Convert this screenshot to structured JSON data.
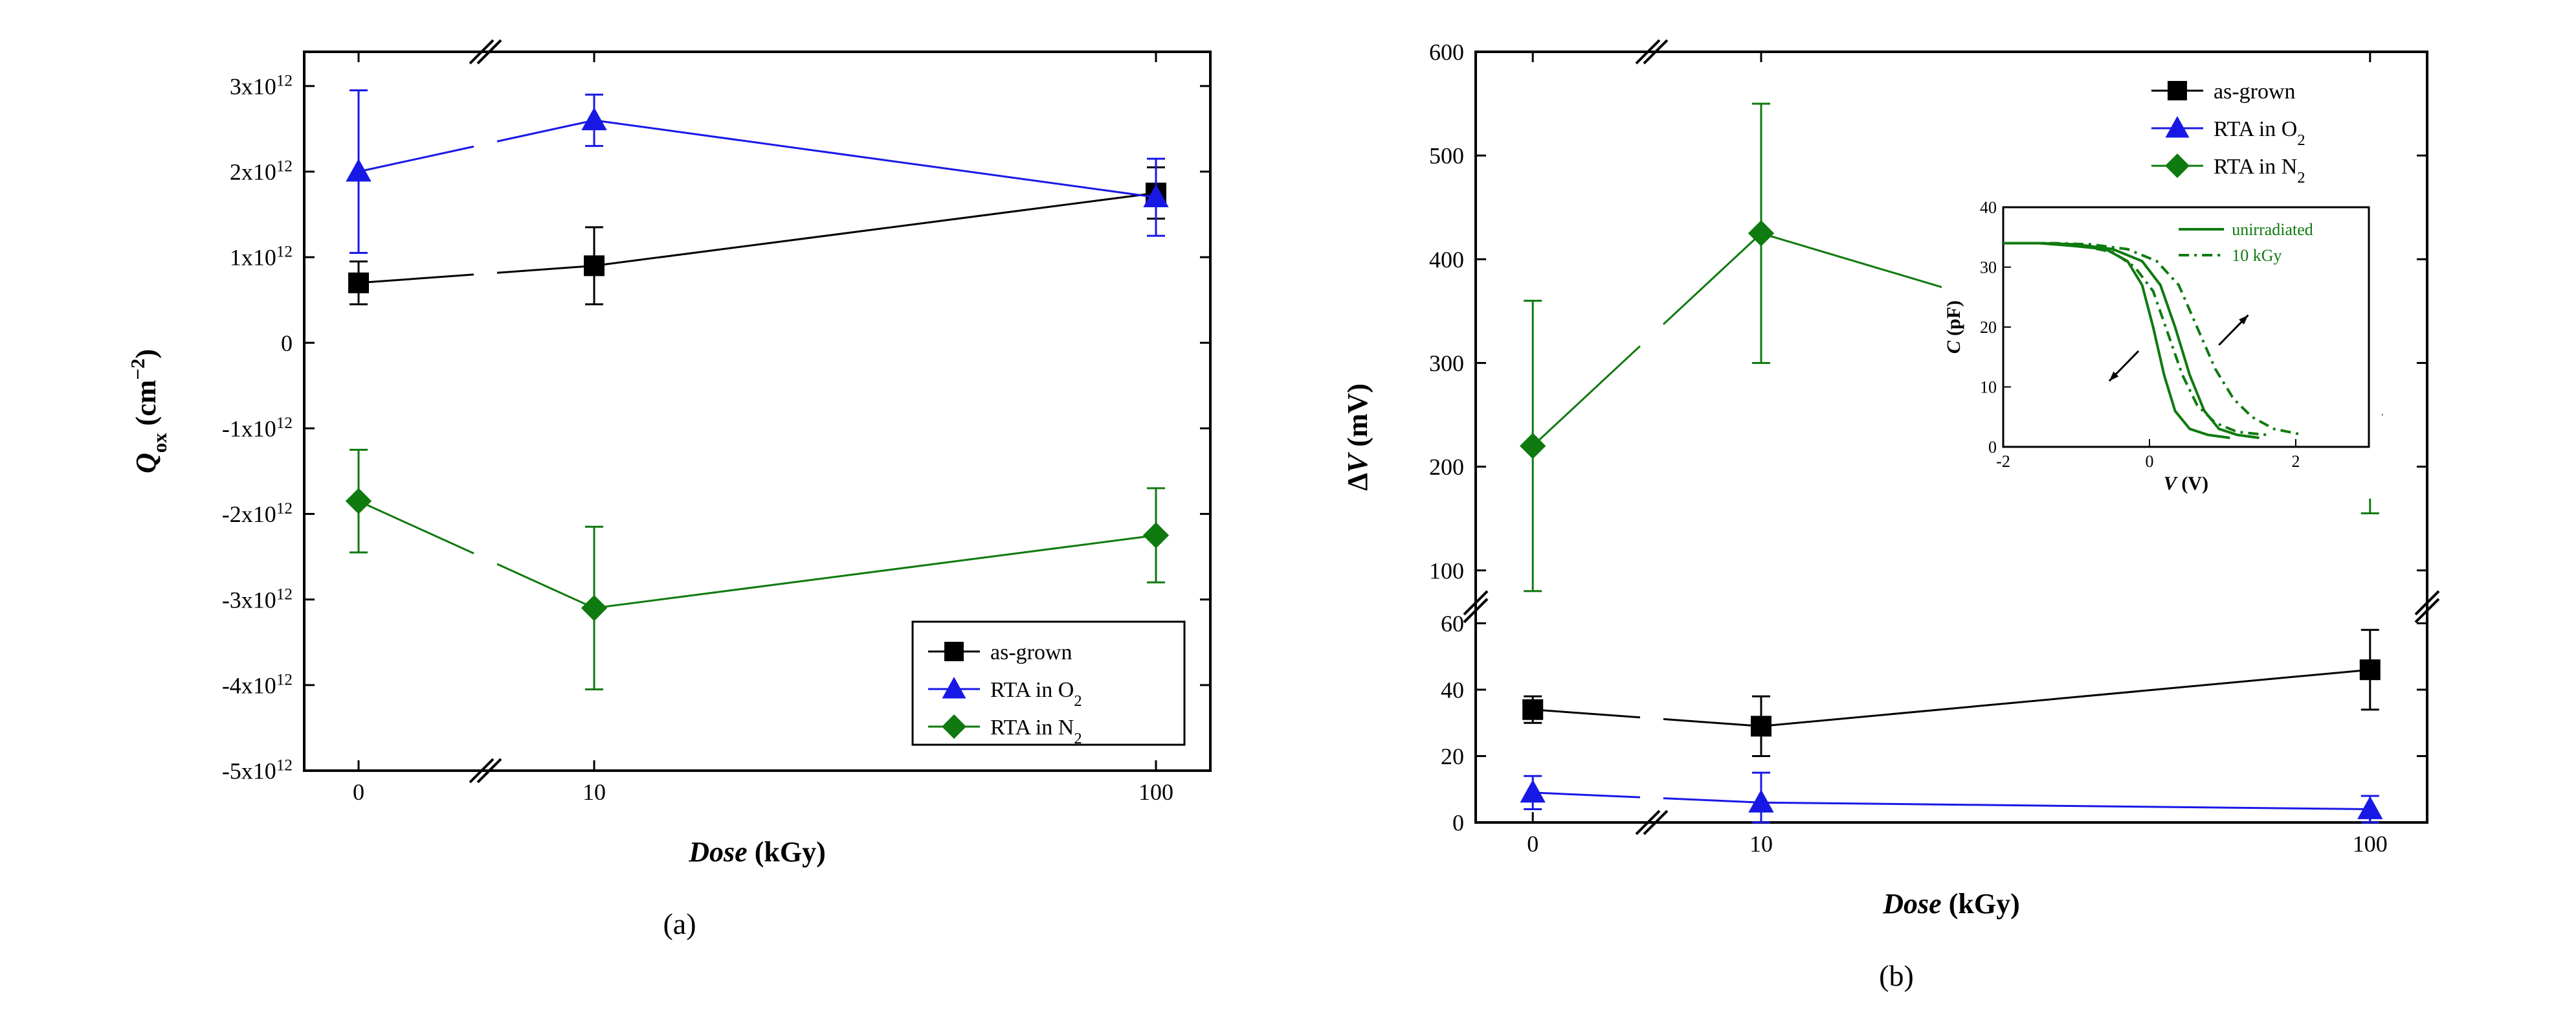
{
  "figure": {
    "panel_a_label": "(a)",
    "panel_b_label": "(b)",
    "colors": {
      "black": "#000000",
      "blue": "#1818e6",
      "green": "#0f7a0f",
      "axis": "#000000",
      "bg": "#ffffff"
    },
    "font": {
      "axis_label_pt": 44,
      "tick_pt": 36,
      "legend_pt": 34,
      "inset_label_pt": 30,
      "inset_tick_pt": 26,
      "panel_label_pt": 46
    },
    "panelA": {
      "type": "scatter-line-errorbar-brokenX",
      "xlabel": "Dose (kGy)",
      "ylabel": "Q_ox (cm^{-2})",
      "x_ticks": [
        0,
        10,
        100
      ],
      "x_tick_labels": [
        "0",
        "10",
        "100"
      ],
      "y_ticks": [
        -5000000000000.0,
        -4000000000000.0,
        -3000000000000.0,
        -2000000000000.0,
        -1000000000000.0,
        0,
        1000000000000.0,
        2000000000000.0,
        3000000000000.0
      ],
      "y_tick_labels": [
        "-5x10^{12}",
        "-4x10^{12}",
        "-3x10^{12}",
        "-2x10^{12}",
        "-1x10^{12}",
        "0",
        "1x10^{12}",
        "2x10^{12}",
        "3x10^{12}"
      ],
      "ylim": [
        -5000000000000.0,
        3400000000000.0
      ],
      "x_break_between": [
        1,
        9
      ],
      "legend": {
        "position": "lower-right",
        "items": [
          {
            "label": "as-grown",
            "marker": "square",
            "color": "#000000"
          },
          {
            "label": "RTA in O_2",
            "marker": "triangle",
            "color": "#1818e6"
          },
          {
            "label": "RTA in N_2",
            "marker": "diamond",
            "color": "#0f7a0f"
          }
        ]
      },
      "series": [
        {
          "name": "as-grown",
          "marker": "square",
          "color": "#000000",
          "line_width": 2,
          "points": [
            {
              "x": 0,
              "y": 700000000000.0,
              "err": 250000000000.0
            },
            {
              "x": 10,
              "y": 900000000000.0,
              "err": 450000000000.0
            },
            {
              "x": 100,
              "y": 1750000000000.0,
              "err": 300000000000.0
            }
          ]
        },
        {
          "name": "RTA in O2",
          "marker": "triangle",
          "color": "#1818e6",
          "line_width": 2,
          "points": [
            {
              "x": 0,
              "y": 2000000000000.0,
              "err": 950000000000.0
            },
            {
              "x": 10,
              "y": 2600000000000.0,
              "err": 300000000000.0
            },
            {
              "x": 100,
              "y": 1700000000000.0,
              "err": 450000000000.0
            }
          ]
        },
        {
          "name": "RTA in N2",
          "marker": "diamond",
          "color": "#0f7a0f",
          "line_width": 2,
          "points": [
            {
              "x": 0,
              "y": -1850000000000.0,
              "err": 600000000000.0
            },
            {
              "x": 10,
              "y": -3100000000000.0,
              "err": 950000000000.0
            },
            {
              "x": 100,
              "y": -2250000000000.0,
              "err": 550000000000.0
            }
          ]
        }
      ]
    },
    "panelB": {
      "type": "scatter-line-errorbar-brokenXY-with-inset",
      "xlabel": "Dose (kGy)",
      "ylabel": "ΔV (mV)",
      "x_ticks": [
        0,
        10,
        100
      ],
      "x_tick_labels": [
        "0",
        "10",
        "100"
      ],
      "y_lower_ticks": [
        0,
        20,
        40,
        60
      ],
      "y_upper_ticks": [
        100,
        200,
        300,
        400,
        500,
        600
      ],
      "y_break_between": [
        65,
        95
      ],
      "ylim_lower": [
        0,
        65
      ],
      "ylim_upper": [
        65,
        600
      ],
      "x_break_between": [
        1,
        9
      ],
      "legend": {
        "position": "upper-right",
        "items": [
          {
            "label": "as-grown",
            "marker": "square",
            "color": "#000000"
          },
          {
            "label": "RTA in O_2",
            "marker": "triangle",
            "color": "#1818e6"
          },
          {
            "label": "RTA in N_2",
            "marker": "diamond",
            "color": "#0f7a0f"
          }
        ]
      },
      "series": [
        {
          "name": "as-grown",
          "marker": "square",
          "color": "#000000",
          "line_width": 2,
          "points": [
            {
              "x": 0,
              "y": 34,
              "err": 4
            },
            {
              "x": 10,
              "y": 29,
              "err": 9
            },
            {
              "x": 100,
              "y": 46,
              "err": 12
            }
          ]
        },
        {
          "name": "RTA in O2",
          "marker": "triangle",
          "color": "#1818e6",
          "line_width": 2,
          "points": [
            {
              "x": 0,
              "y": 9,
              "err": 5
            },
            {
              "x": 10,
              "y": 6,
              "err": 9
            },
            {
              "x": 100,
              "y": 4,
              "err": 4
            }
          ]
        },
        {
          "name": "RTA in N2",
          "marker": "diamond",
          "color": "#0f7a0f",
          "line_width": 2,
          "points": [
            {
              "x": 0,
              "y": 220,
              "err": 140
            },
            {
              "x": 10,
              "y": 425,
              "err": 125
            },
            {
              "x": 100,
              "y": 250,
              "err": 95
            }
          ]
        }
      ],
      "inset": {
        "type": "CV-hysteresis",
        "xlabel": "V (V)",
        "ylabel": "C (pF)",
        "xlim": [
          -2,
          3
        ],
        "ylim": [
          0,
          40
        ],
        "x_ticks": [
          -2,
          0,
          2
        ],
        "y_ticks": [
          0,
          10,
          20,
          30,
          40
        ],
        "color": "#0f7a0f",
        "legend": [
          {
            "label": "unirradiated",
            "dash": "solid"
          },
          {
            "label": "10 kGy",
            "dash": "dashdot"
          }
        ],
        "curves": [
          {
            "name": "unirr-fwd",
            "dash": "solid",
            "pts": [
              [
                -2,
                34
              ],
              [
                -1.5,
                34
              ],
              [
                -1,
                33.5
              ],
              [
                -0.6,
                33
              ],
              [
                -0.3,
                31
              ],
              [
                -0.1,
                27
              ],
              [
                0.05,
                20
              ],
              [
                0.2,
                12
              ],
              [
                0.35,
                6
              ],
              [
                0.55,
                3
              ],
              [
                0.8,
                2
              ],
              [
                1.1,
                1.5
              ]
            ]
          },
          {
            "name": "unirr-rev",
            "dash": "solid",
            "pts": [
              [
                -2,
                34
              ],
              [
                -1.5,
                34
              ],
              [
                -1,
                33.8
              ],
              [
                -0.5,
                33
              ],
              [
                -0.1,
                31
              ],
              [
                0.15,
                27
              ],
              [
                0.35,
                20
              ],
              [
                0.55,
                12
              ],
              [
                0.75,
                6
              ],
              [
                0.95,
                3
              ],
              [
                1.2,
                2
              ],
              [
                1.5,
                1.5
              ]
            ]
          },
          {
            "name": "10k-fwd",
            "dash": "dashdot",
            "pts": [
              [
                -2,
                34
              ],
              [
                -1.4,
                34
              ],
              [
                -0.9,
                33.5
              ],
              [
                -0.5,
                32.5
              ],
              [
                -0.2,
                30
              ],
              [
                0.05,
                26
              ],
              [
                0.25,
                19
              ],
              [
                0.45,
                12
              ],
              [
                0.65,
                7
              ],
              [
                0.9,
                4
              ],
              [
                1.2,
                2.5
              ],
              [
                1.6,
                2
              ]
            ]
          },
          {
            "name": "10k-rev",
            "dash": "dashdot",
            "pts": [
              [
                -2,
                34
              ],
              [
                -1.3,
                34
              ],
              [
                -0.8,
                33.8
              ],
              [
                -0.3,
                33
              ],
              [
                0.1,
                31
              ],
              [
                0.4,
                27
              ],
              [
                0.65,
                20
              ],
              [
                0.9,
                13
              ],
              [
                1.15,
                8
              ],
              [
                1.4,
                5
              ],
              [
                1.7,
                3
              ],
              [
                2.1,
                2
              ]
            ]
          }
        ],
        "arrows": [
          {
            "from": [
              -0.15,
              16
            ],
            "to": [
              -0.55,
              11
            ]
          },
          {
            "from": [
              0.95,
              17
            ],
            "to": [
              1.35,
              22
            ]
          }
        ]
      }
    }
  }
}
